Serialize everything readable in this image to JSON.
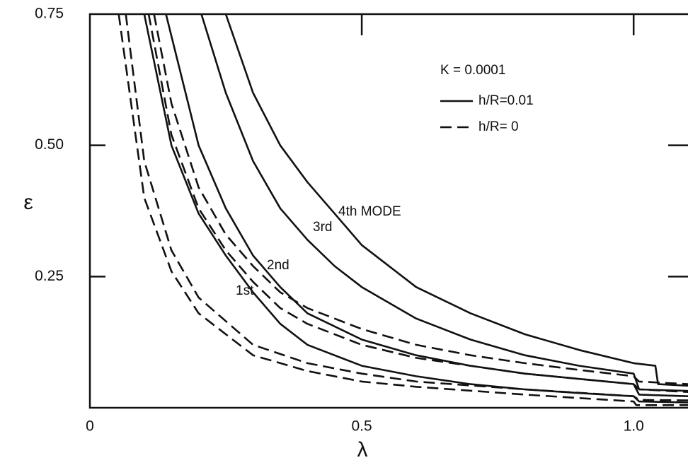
{
  "chart_data": {
    "type": "line",
    "x_label": "λ",
    "y_label": "ε",
    "xlim": [
      0,
      1.1
    ],
    "ylim": [
      0,
      0.75
    ],
    "xticks": [
      0,
      0.5,
      {
        "value": 1,
        "label": "1.0"
      }
    ],
    "yticks": [
      0.25,
      {
        "value": 0.5,
        "label": "0.50"
      },
      0.75
    ],
    "legend_title": "K = 0.0001",
    "legend": [
      {
        "label": "h/R=0.01",
        "style": "solid"
      },
      {
        "label": "h/R= 0",
        "style": "dashed"
      }
    ],
    "annotations": [
      "4th MODE",
      "3rd",
      "2nd",
      "1st"
    ],
    "color": "#111111",
    "series": [
      {
        "style": "solid",
        "x": [
          0.25,
          0.3,
          0.35,
          0.4,
          0.45,
          0.5,
          0.6,
          0.7,
          0.8,
          0.9,
          1.0,
          1.04,
          1.045,
          1.1
        ],
        "values": [
          0.75,
          0.6,
          0.5,
          0.43,
          0.37,
          0.31,
          0.23,
          0.18,
          0.14,
          0.11,
          0.085,
          0.08,
          0.045,
          0.042
        ]
      },
      {
        "style": "solid",
        "x": [
          0.205,
          0.25,
          0.3,
          0.35,
          0.4,
          0.45,
          0.5,
          0.6,
          0.7,
          0.8,
          0.9,
          1.0,
          1.01,
          1.1
        ],
        "values": [
          0.75,
          0.6,
          0.47,
          0.38,
          0.32,
          0.27,
          0.23,
          0.17,
          0.13,
          0.1,
          0.08,
          0.065,
          0.035,
          0.032
        ]
      },
      {
        "style": "solid",
        "x": [
          0.14,
          0.2,
          0.25,
          0.3,
          0.35,
          0.4,
          0.5,
          0.6,
          0.7,
          0.8,
          0.9,
          1.0,
          1.01,
          1.1
        ],
        "values": [
          0.75,
          0.5,
          0.38,
          0.29,
          0.23,
          0.18,
          0.13,
          0.1,
          0.08,
          0.065,
          0.055,
          0.045,
          0.025,
          0.022
        ]
      },
      {
        "style": "solid",
        "x": [
          0.1,
          0.15,
          0.2,
          0.25,
          0.3,
          0.35,
          0.4,
          0.5,
          0.6,
          0.7,
          0.8,
          0.9,
          1.0,
          1.01,
          1.1
        ],
        "values": [
          0.75,
          0.5,
          0.37,
          0.29,
          0.22,
          0.16,
          0.12,
          0.08,
          0.06,
          0.045,
          0.035,
          0.028,
          0.022,
          0.012,
          0.01
        ]
      },
      {
        "style": "dashed",
        "x": [
          0.053,
          0.1,
          0.15,
          0.2,
          0.3,
          0.4,
          0.5,
          0.6,
          0.8,
          1.0,
          1.005,
          1.1
        ],
        "values": [
          0.75,
          0.4,
          0.26,
          0.18,
          0.1,
          0.07,
          0.05,
          0.04,
          0.025,
          0.012,
          0.005,
          0.005
        ]
      },
      {
        "style": "dashed",
        "x": [
          0.066,
          0.1,
          0.15,
          0.2,
          0.3,
          0.4,
          0.5,
          0.6,
          0.8,
          1.0,
          1.01,
          1.1
        ],
        "values": [
          0.75,
          0.47,
          0.3,
          0.21,
          0.12,
          0.085,
          0.065,
          0.05,
          0.035,
          0.022,
          0.015,
          0.014
        ]
      },
      {
        "style": "dashed",
        "x": [
          0.108,
          0.15,
          0.2,
          0.25,
          0.3,
          0.35,
          0.4,
          0.5,
          0.6,
          0.7,
          0.8,
          0.9,
          1.0,
          1.01,
          1.1
        ],
        "values": [
          0.75,
          0.52,
          0.38,
          0.3,
          0.24,
          0.19,
          0.16,
          0.12,
          0.095,
          0.08,
          0.065,
          0.055,
          0.045,
          0.035,
          0.03
        ]
      },
      {
        "style": "dashed",
        "x": [
          0.118,
          0.15,
          0.2,
          0.25,
          0.3,
          0.35,
          0.4,
          0.5,
          0.6,
          0.7,
          0.8,
          0.9,
          1.0,
          1.01,
          1.1
        ],
        "values": [
          0.75,
          0.58,
          0.42,
          0.33,
          0.27,
          0.22,
          0.19,
          0.15,
          0.12,
          0.1,
          0.085,
          0.072,
          0.06,
          0.05,
          0.045
        ]
      }
    ]
  }
}
